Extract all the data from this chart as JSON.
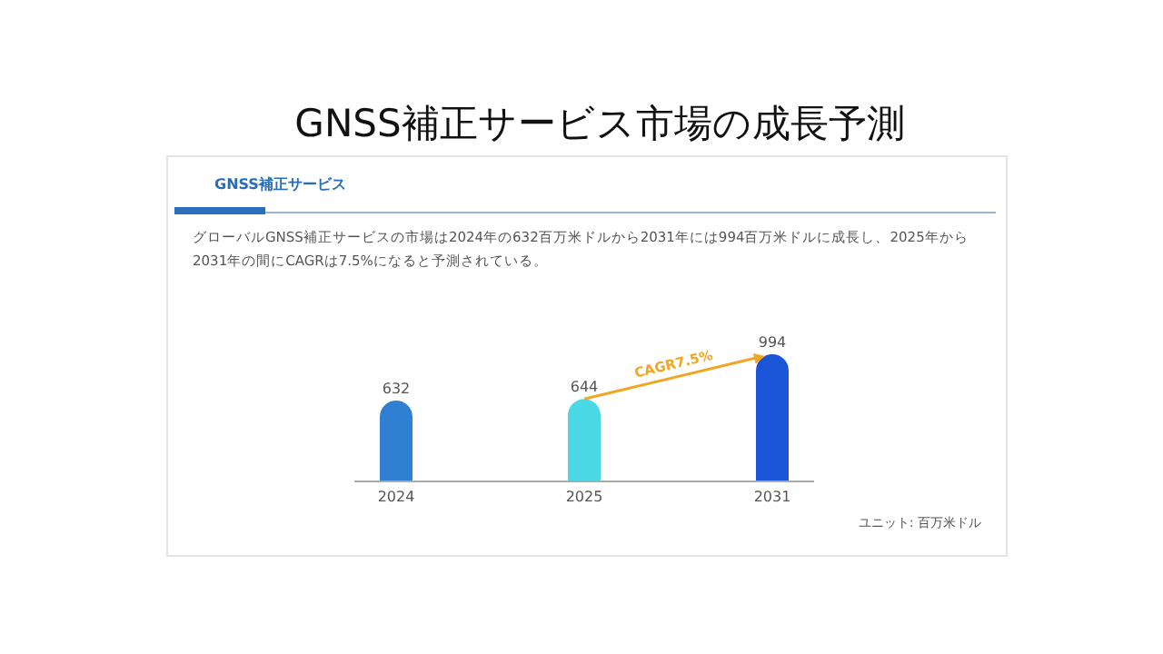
{
  "chart_data": {
    "type": "bar",
    "title": "GNSS補正サービス市場の成長予測",
    "subtitle": "GNSS補正サービス",
    "annotations": [
      "グローバルGNSS補正サービスの市場は2024年の632百万米ドルから2031年には994百万米ドルに成長し、2025年から2031年の間にCAGRは7.5%になると予測されている。",
      "CAGR7.5%",
      "ユニット: 百万米ドル"
    ],
    "categories": [
      "2024",
      "2025",
      "2031"
    ],
    "values": [
      632,
      644,
      994
    ],
    "colors": [
      "#2f80d2",
      "#4ad8e4",
      "#1a55d8"
    ],
    "data_labels": true
  }
}
